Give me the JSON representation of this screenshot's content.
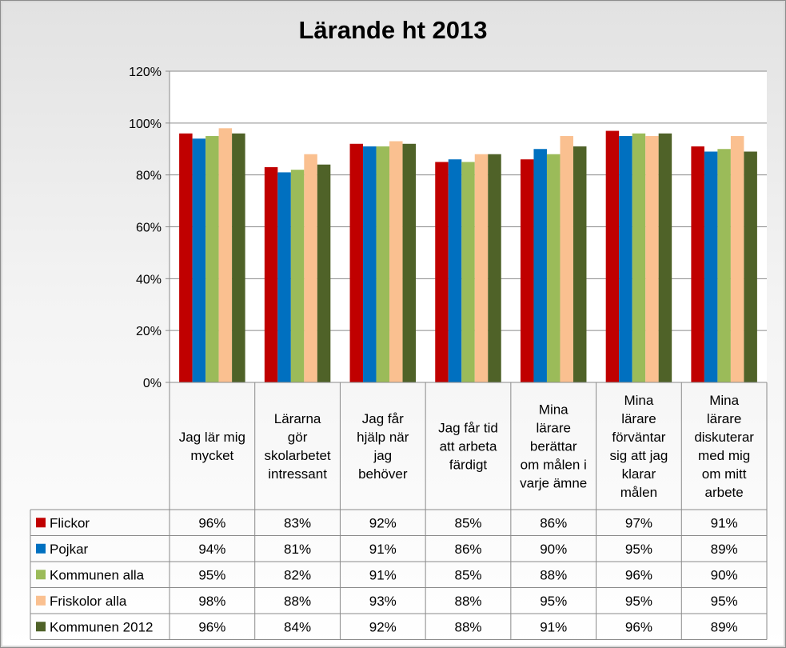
{
  "chart_data": {
    "type": "bar",
    "title": "Lärande ht 2013",
    "ylim": [
      0,
      120
    ],
    "yticks": [
      "0%",
      "20%",
      "40%",
      "60%",
      "80%",
      "100%",
      "120%"
    ],
    "grid": true,
    "legend": "data-table",
    "categories": [
      "Jag lär mig mycket",
      "Lärarna gör skolarbetet intressant",
      "Jag får hjälp när jag behöver",
      "Jag får tid att arbeta färdigt",
      "Mina lärare berättar om målen i varje ämne",
      "Mina lärare förväntar sig att jag klarar målen",
      "Mina lärare diskuterar med mig om mitt arbete"
    ],
    "category_lines": [
      [
        "Jag lär mig",
        "mycket"
      ],
      [
        "Lärarna",
        "gör",
        "skolarbetet",
        "intressant"
      ],
      [
        "Jag får",
        "hjälp när",
        "jag",
        "behöver"
      ],
      [
        "Jag får tid",
        "att arbeta",
        "färdigt"
      ],
      [
        "Mina",
        "lärare",
        "berättar",
        "om målen i",
        "varje ämne"
      ],
      [
        "Mina",
        "lärare",
        "förväntar",
        "sig att jag",
        "klarar",
        "målen"
      ],
      [
        "Mina",
        "lärare",
        "diskuterar",
        "med mig",
        "om mitt",
        "arbete"
      ]
    ],
    "series": [
      {
        "name": "Flickor",
        "color": "#c00000",
        "values": [
          96,
          83,
          92,
          85,
          86,
          97,
          91
        ],
        "labels": [
          "96%",
          "83%",
          "92%",
          "85%",
          "86%",
          "97%",
          "91%"
        ]
      },
      {
        "name": "Pojkar",
        "color": "#0070c0",
        "values": [
          94,
          81,
          91,
          86,
          90,
          95,
          89
        ],
        "labels": [
          "94%",
          "81%",
          "91%",
          "86%",
          "90%",
          "95%",
          "89%"
        ]
      },
      {
        "name": "Kommunen alla",
        "color": "#9bbb59",
        "values": [
          95,
          82,
          91,
          85,
          88,
          96,
          90
        ],
        "labels": [
          "95%",
          "82%",
          "91%",
          "85%",
          "88%",
          "96%",
          "90%"
        ]
      },
      {
        "name": "Friskolor alla",
        "color": "#fac090",
        "values": [
          98,
          88,
          93,
          88,
          95,
          95,
          95
        ],
        "labels": [
          "98%",
          "88%",
          "93%",
          "88%",
          "95%",
          "95%",
          "95%"
        ]
      },
      {
        "name": "Kommunen 2012",
        "color": "#4f6228",
        "values": [
          96,
          84,
          92,
          88,
          91,
          96,
          89
        ],
        "labels": [
          "96%",
          "84%",
          "92%",
          "88%",
          "91%",
          "96%",
          "89%"
        ]
      }
    ]
  }
}
